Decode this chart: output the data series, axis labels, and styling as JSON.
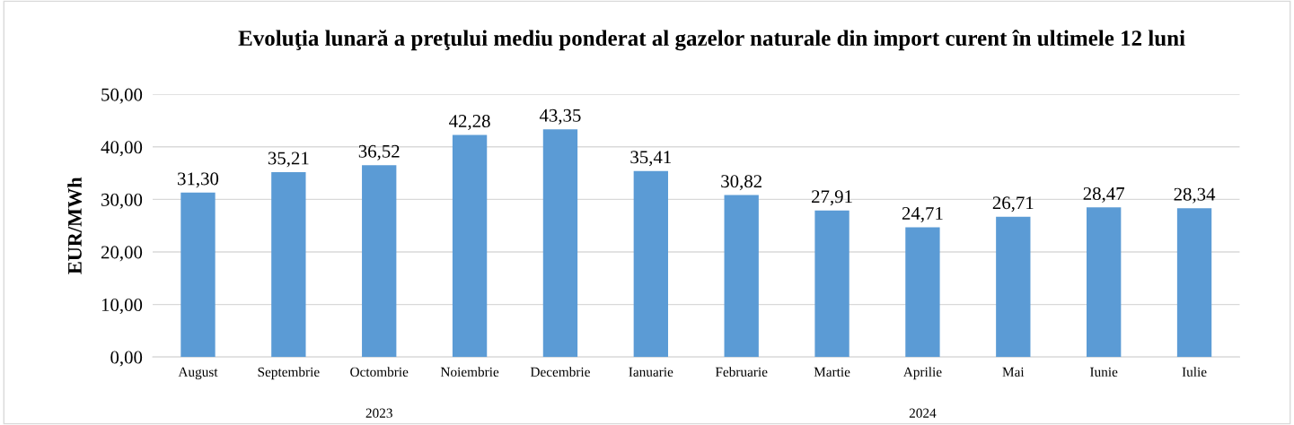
{
  "chart_data": {
    "type": "bar",
    "title": "Evoluţia lunară a preţului mediu ponderat al gazelor naturale din import curent în ultimele 12 luni",
    "ylabel": "EUR/MWh",
    "categories": [
      "August",
      "Septembrie",
      "Octombrie",
      "Noiembrie",
      "Decembrie",
      "Ianuarie",
      "Februarie",
      "Martie",
      "Aprilie",
      "Mai",
      "Iunie",
      "Iulie"
    ],
    "values": [
      31.3,
      35.21,
      36.52,
      42.28,
      43.35,
      35.41,
      30.82,
      27.91,
      24.71,
      26.71,
      28.47,
      28.34
    ],
    "value_labels": [
      "31,30",
      "35,21",
      "36,52",
      "42,28",
      "43,35",
      "35,41",
      "30,82",
      "27,91",
      "24,71",
      "26,71",
      "28,47",
      "28,34"
    ],
    "color": "#5b9bd5",
    "ylim": [
      0,
      50
    ],
    "yticks": [
      {
        "value": 0,
        "label": "0,00"
      },
      {
        "value": 10,
        "label": "10,00"
      },
      {
        "value": 20,
        "label": "20,00"
      },
      {
        "value": 30,
        "label": "30,00"
      },
      {
        "value": 40,
        "label": "40,00"
      },
      {
        "value": 50,
        "label": "50,00"
      }
    ],
    "grid": "y",
    "annotations": [
      "2023",
      "2024"
    ]
  }
}
